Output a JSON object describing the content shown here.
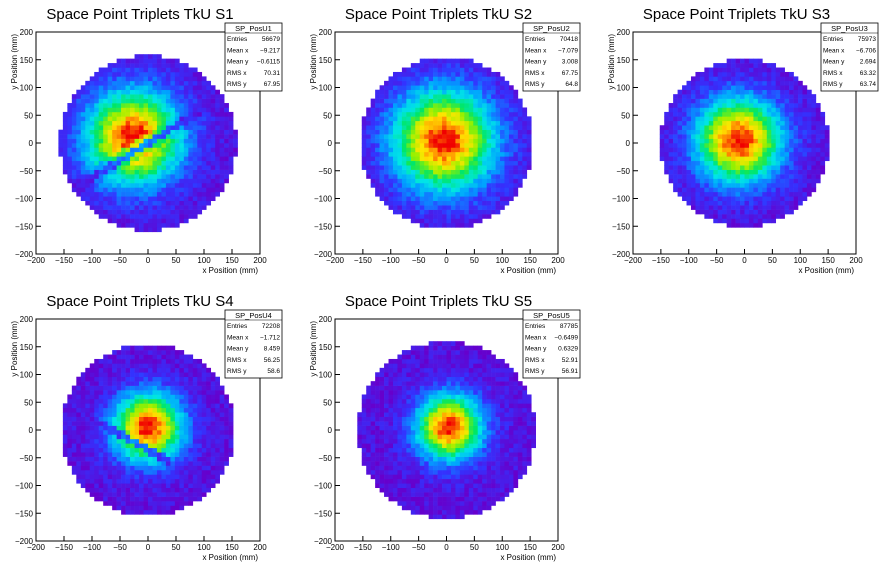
{
  "chart_data": [
    {
      "type": "heatmap",
      "title": "Space Point Triplets TkU S1",
      "xlabel": "x Position (mm)",
      "ylabel": "y Position (mm)",
      "xlim": [
        -200,
        200
      ],
      "ylim": [
        -200,
        200
      ],
      "xticks": [
        -200,
        -150,
        -100,
        -50,
        0,
        50,
        100,
        150,
        200
      ],
      "yticks": [
        -200,
        -150,
        -100,
        -50,
        0,
        50,
        100,
        150,
        200
      ],
      "stats": {
        "name": "SP_PosU1",
        "rows": [
          {
            "label": "Entries",
            "value": "56679"
          },
          {
            "label": "Mean x",
            "value": "-9.217"
          },
          {
            "label": "Mean y",
            "value": "-0.6115"
          },
          {
            "label": "RMS x",
            "value": "70.31"
          },
          {
            "label": "RMS y",
            "value": "67.95"
          }
        ]
      },
      "distribution": {
        "center": [
          -25,
          10
        ],
        "sigma": 58,
        "radius": 158,
        "peak_color": "yellow-orange",
        "feature": "diagonal gap band from lower-left to upper-right"
      }
    },
    {
      "type": "heatmap",
      "title": "Space Point Triplets TkU S2",
      "xlabel": "x Position (mm)",
      "ylabel": "y Position (mm)",
      "xlim": [
        -200,
        200
      ],
      "ylim": [
        -200,
        200
      ],
      "xticks": [
        -200,
        -150,
        -100,
        -50,
        0,
        50,
        100,
        150,
        200
      ],
      "yticks": [
        -200,
        -150,
        -100,
        -50,
        0,
        50,
        100,
        150,
        200
      ],
      "stats": {
        "name": "SP_PosU2",
        "rows": [
          {
            "label": "Entries",
            "value": "70418"
          },
          {
            "label": "Mean x",
            "value": "-7.079"
          },
          {
            "label": "Mean y",
            "value": "3.008"
          },
          {
            "label": "RMS x",
            "value": "67.75"
          },
          {
            "label": "RMS y",
            "value": "64.8"
          }
        ]
      },
      "distribution": {
        "center": [
          -5,
          5
        ],
        "sigma": 62,
        "radius": 155,
        "peak_color": "yellow-orange",
        "feature": "none"
      }
    },
    {
      "type": "heatmap",
      "title": "Space Point Triplets TkU S3",
      "xlabel": "x Position (mm)",
      "ylabel": "y Position (mm)",
      "xlim": [
        -200,
        200
      ],
      "ylim": [
        -200,
        200
      ],
      "xticks": [
        -200,
        -150,
        -100,
        -50,
        0,
        50,
        100,
        150,
        200
      ],
      "yticks": [
        -200,
        -150,
        -100,
        -50,
        0,
        50,
        100,
        150,
        200
      ],
      "stats": {
        "name": "SP_PosU3",
        "rows": [
          {
            "label": "Entries",
            "value": "75973"
          },
          {
            "label": "Mean x",
            "value": "-6.706"
          },
          {
            "label": "Mean y",
            "value": "2.694"
          },
          {
            "label": "RMS x",
            "value": "63.32"
          },
          {
            "label": "RMS y",
            "value": "63.74"
          }
        ]
      },
      "distribution": {
        "center": [
          -10,
          5
        ],
        "sigma": 52,
        "radius": 152,
        "peak_color": "red",
        "feature": "none"
      }
    },
    {
      "type": "heatmap",
      "title": "Space Point Triplets TkU S4",
      "xlabel": "x Position (mm)",
      "ylabel": "y Position (mm)",
      "xlim": [
        -200,
        200
      ],
      "ylim": [
        -200,
        200
      ],
      "xticks": [
        -200,
        -150,
        -100,
        -50,
        0,
        50,
        100,
        150,
        200
      ],
      "yticks": [
        -200,
        -150,
        -100,
        -50,
        0,
        50,
        100,
        150,
        200
      ],
      "stats": {
        "name": "SP_PosU4",
        "rows": [
          {
            "label": "Entries",
            "value": "72208"
          },
          {
            "label": "Mean x",
            "value": "-1.712"
          },
          {
            "label": "Mean y",
            "value": "8.459"
          },
          {
            "label": "RMS x",
            "value": "56.25"
          },
          {
            "label": "RMS y",
            "value": "58.6"
          }
        ]
      },
      "distribution": {
        "center": [
          0,
          5
        ],
        "sigma": 42,
        "radius": 155,
        "peak_color": "red",
        "feature": "diagonal gap band from left toward lower-center"
      }
    },
    {
      "type": "heatmap",
      "title": "Space Point Triplets TkU S5",
      "xlabel": "x Position (mm)",
      "ylabel": "y Position (mm)",
      "xlim": [
        -200,
        200
      ],
      "ylim": [
        -200,
        200
      ],
      "xticks": [
        -200,
        -150,
        -100,
        -50,
        0,
        50,
        100,
        150,
        200
      ],
      "yticks": [
        -200,
        -150,
        -100,
        -50,
        0,
        50,
        100,
        150,
        200
      ],
      "stats": {
        "name": "SP_PosU5",
        "rows": [
          {
            "label": "Entries",
            "value": "87785"
          },
          {
            "label": "Mean x",
            "value": "-0.6499"
          },
          {
            "label": "Mean y",
            "value": "0.6329"
          },
          {
            "label": "RMS x",
            "value": "52.91"
          },
          {
            "label": "RMS y",
            "value": "56.91"
          }
        ]
      },
      "distribution": {
        "center": [
          5,
          5
        ],
        "sigma": 40,
        "radius": 160,
        "peak_color": "red",
        "feature": "none"
      }
    }
  ]
}
